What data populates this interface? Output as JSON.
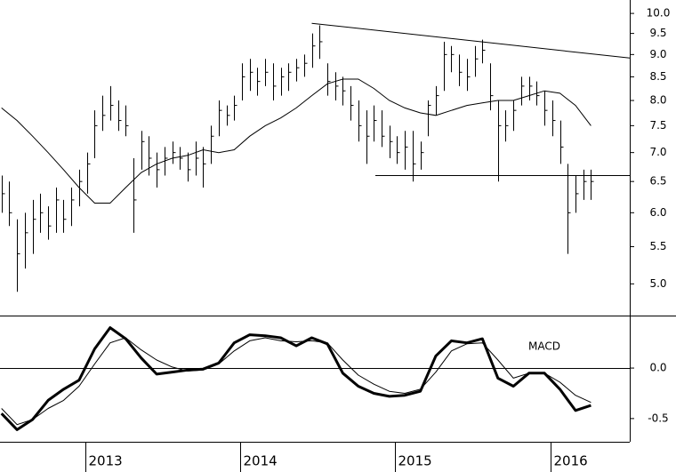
{
  "chart_data": [
    {
      "type": "ohlc",
      "log_scale": true,
      "color": "#000000",
      "xlim": [
        2012.44,
        2016.5
      ],
      "ylim": [
        4.61,
        10.35
      ],
      "yticks": [
        {
          "value": 10,
          "label": "10.0"
        },
        9.5,
        {
          "value": 9,
          "label": "9.0"
        },
        8.5,
        {
          "value": 8,
          "label": "8.0"
        },
        7.5,
        {
          "value": 7,
          "label": "7.0"
        },
        6.5,
        {
          "value": 6,
          "label": "6.0"
        },
        5.5,
        {
          "value": 5,
          "label": "5.0"
        }
      ],
      "x": [
        2012.45,
        2012.5,
        2012.55,
        2012.6,
        2012.65,
        2012.7,
        2012.75,
        2012.8,
        2012.85,
        2012.9,
        2012.95,
        2013.0,
        2013.05,
        2013.1,
        2013.15,
        2013.2,
        2013.25,
        2013.3,
        2013.35,
        2013.4,
        2013.45,
        2013.5,
        2013.55,
        2013.6,
        2013.65,
        2013.7,
        2013.75,
        2013.8,
        2013.85,
        2013.9,
        2013.95,
        2014.0,
        2014.05,
        2014.1,
        2014.15,
        2014.2,
        2014.25,
        2014.3,
        2014.35,
        2014.4,
        2014.45,
        2014.5,
        2014.55,
        2014.6,
        2014.65,
        2014.7,
        2014.75,
        2014.8,
        2014.85,
        2014.9,
        2014.95,
        2015.0,
        2015.05,
        2015.1,
        2015.15,
        2015.2,
        2015.25,
        2015.3,
        2015.35,
        2015.4,
        2015.45,
        2015.5,
        2015.55,
        2015.6,
        2015.65,
        2015.7,
        2015.75,
        2015.8,
        2015.85,
        2015.9,
        2015.95,
        2016.0,
        2016.05,
        2016.1,
        2016.15,
        2016.2,
        2016.25
      ],
      "high": [
        6.6,
        6.5,
        5.9,
        6.0,
        6.2,
        6.3,
        6.1,
        6.4,
        6.2,
        6.4,
        6.7,
        7.0,
        7.8,
        8.1,
        8.3,
        8.0,
        7.9,
        6.9,
        7.4,
        7.3,
        7.0,
        7.1,
        7.2,
        7.1,
        7.0,
        7.2,
        7.1,
        7.5,
        8.0,
        7.9,
        8.1,
        8.8,
        8.9,
        8.7,
        8.9,
        8.8,
        8.7,
        8.8,
        8.9,
        9.0,
        9.5,
        9.7,
        8.8,
        8.6,
        8.5,
        8.3,
        8.0,
        7.8,
        7.9,
        7.8,
        7.5,
        7.3,
        7.4,
        7.4,
        7.2,
        8.0,
        8.3,
        9.3,
        9.2,
        9.0,
        8.9,
        9.2,
        9.35,
        8.8,
        8.0,
        7.8,
        8.0,
        8.5,
        8.5,
        8.4,
        8.2,
        8.0,
        7.6,
        6.8,
        6.6,
        6.7,
        6.7
      ],
      "low": [
        6.0,
        5.8,
        4.9,
        5.2,
        5.4,
        5.7,
        5.6,
        5.7,
        5.7,
        5.8,
        6.1,
        6.3,
        6.9,
        7.4,
        7.6,
        7.4,
        7.3,
        5.7,
        6.7,
        6.6,
        6.4,
        6.6,
        6.8,
        6.7,
        6.5,
        6.6,
        6.4,
        6.8,
        7.3,
        7.5,
        7.6,
        8.0,
        8.2,
        8.1,
        8.3,
        8.0,
        8.1,
        8.2,
        8.4,
        8.5,
        8.7,
        8.9,
        8.1,
        8.0,
        7.9,
        7.6,
        7.2,
        6.8,
        7.2,
        7.1,
        6.9,
        6.8,
        6.7,
        6.5,
        6.7,
        7.3,
        7.7,
        8.2,
        8.6,
        8.3,
        8.2,
        8.5,
        8.8,
        7.8,
        6.5,
        7.2,
        7.4,
        7.9,
        8.0,
        7.9,
        7.5,
        7.3,
        6.8,
        5.4,
        6.0,
        6.2,
        6.2
      ],
      "close": [
        6.3,
        6.0,
        5.4,
        5.7,
        5.9,
        6.0,
        5.8,
        6.2,
        5.9,
        6.2,
        6.5,
        6.8,
        7.5,
        7.7,
        7.9,
        7.6,
        7.5,
        6.2,
        7.2,
        6.9,
        6.7,
        6.9,
        7.0,
        6.9,
        6.7,
        6.9,
        6.8,
        7.3,
        7.8,
        7.7,
        7.9,
        8.5,
        8.6,
        8.4,
        8.6,
        8.3,
        8.5,
        8.6,
        8.7,
        8.8,
        9.2,
        9.3,
        8.4,
        8.3,
        8.2,
        7.9,
        7.5,
        7.3,
        7.6,
        7.3,
        7.2,
        7.0,
        7.1,
        6.8,
        7.0,
        7.9,
        8.1,
        9.0,
        9.0,
        8.6,
        8.5,
        8.9,
        9.1,
        8.1,
        7.5,
        7.5,
        7.8,
        8.3,
        8.3,
        8.1,
        7.8,
        7.6,
        7.1,
        6.0,
        6.3,
        6.5,
        6.5
      ],
      "moving_average": {
        "x": [
          2012.45,
          2012.55,
          2012.65,
          2012.75,
          2012.85,
          2012.95,
          2013.05,
          2013.15,
          2013.25,
          2013.35,
          2013.45,
          2013.55,
          2013.65,
          2013.75,
          2013.85,
          2013.95,
          2014.05,
          2014.15,
          2014.25,
          2014.35,
          2014.45,
          2014.55,
          2014.65,
          2014.75,
          2014.85,
          2014.95,
          2015.05,
          2015.15,
          2015.25,
          2015.35,
          2015.45,
          2015.55,
          2015.65,
          2015.75,
          2015.85,
          2015.95,
          2016.05,
          2016.15,
          2016.25
        ],
        "values": [
          7.85,
          7.6,
          7.3,
          7.0,
          6.7,
          6.4,
          6.15,
          6.15,
          6.4,
          6.65,
          6.8,
          6.9,
          6.95,
          7.05,
          7.0,
          7.05,
          7.3,
          7.5,
          7.65,
          7.85,
          8.1,
          8.35,
          8.45,
          8.45,
          8.25,
          8.0,
          7.85,
          7.75,
          7.7,
          7.8,
          7.9,
          7.95,
          8.0,
          8.0,
          8.1,
          8.2,
          8.15,
          7.9,
          7.5
        ]
      },
      "trendlines": [
        {
          "x": [
            2014.45,
            2016.5
          ],
          "y": [
            9.75,
            8.92
          ]
        },
        {
          "x": [
            2014.86,
            2016.5
          ],
          "y": [
            6.6,
            6.6
          ]
        }
      ]
    },
    {
      "type": "line",
      "label": "MACD",
      "xlim": [
        2012.44,
        2016.5
      ],
      "ylim": [
        -0.73,
        0.52
      ],
      "yticks": [
        {
          "value": 0,
          "label": "0.0"
        },
        -0.5
      ],
      "xticks": [
        2013,
        2014,
        2015,
        2016
      ],
      "x": [
        2012.45,
        2012.55,
        2012.65,
        2012.75,
        2012.85,
        2012.95,
        2013.05,
        2013.15,
        2013.25,
        2013.35,
        2013.45,
        2013.55,
        2013.65,
        2013.75,
        2013.85,
        2013.95,
        2014.05,
        2014.15,
        2014.25,
        2014.35,
        2014.45,
        2014.55,
        2014.65,
        2014.75,
        2014.85,
        2014.95,
        2015.05,
        2015.15,
        2015.25,
        2015.35,
        2015.45,
        2015.55,
        2015.65,
        2015.75,
        2015.85,
        2015.95,
        2016.05,
        2016.15,
        2016.25
      ],
      "series": [
        {
          "color": "#000000",
          "width": 3,
          "values": [
            -0.45,
            -0.61,
            -0.51,
            -0.32,
            -0.21,
            -0.12,
            0.19,
            0.4,
            0.29,
            0.1,
            -0.06,
            -0.04,
            -0.02,
            -0.01,
            0.05,
            0.25,
            0.33,
            0.32,
            0.3,
            0.22,
            0.3,
            0.24,
            -0.05,
            -0.18,
            -0.25,
            -0.28,
            -0.27,
            -0.23,
            0.12,
            0.27,
            0.25,
            0.29,
            -0.1,
            -0.18,
            -0.05,
            -0.05,
            -0.21,
            -0.42,
            -0.37
          ]
        },
        {
          "color": "#000000",
          "width": 1,
          "values": [
            -0.4,
            -0.56,
            -0.51,
            -0.4,
            -0.32,
            -0.18,
            0.04,
            0.25,
            0.3,
            0.18,
            0.08,
            0.01,
            -0.03,
            -0.02,
            0.04,
            0.17,
            0.27,
            0.3,
            0.27,
            0.26,
            0.27,
            0.25,
            0.08,
            -0.07,
            -0.16,
            -0.23,
            -0.25,
            -0.21,
            -0.04,
            0.17,
            0.24,
            0.25,
            0.08,
            -0.1,
            -0.05,
            -0.05,
            -0.14,
            -0.27,
            -0.34
          ]
        }
      ]
    }
  ]
}
